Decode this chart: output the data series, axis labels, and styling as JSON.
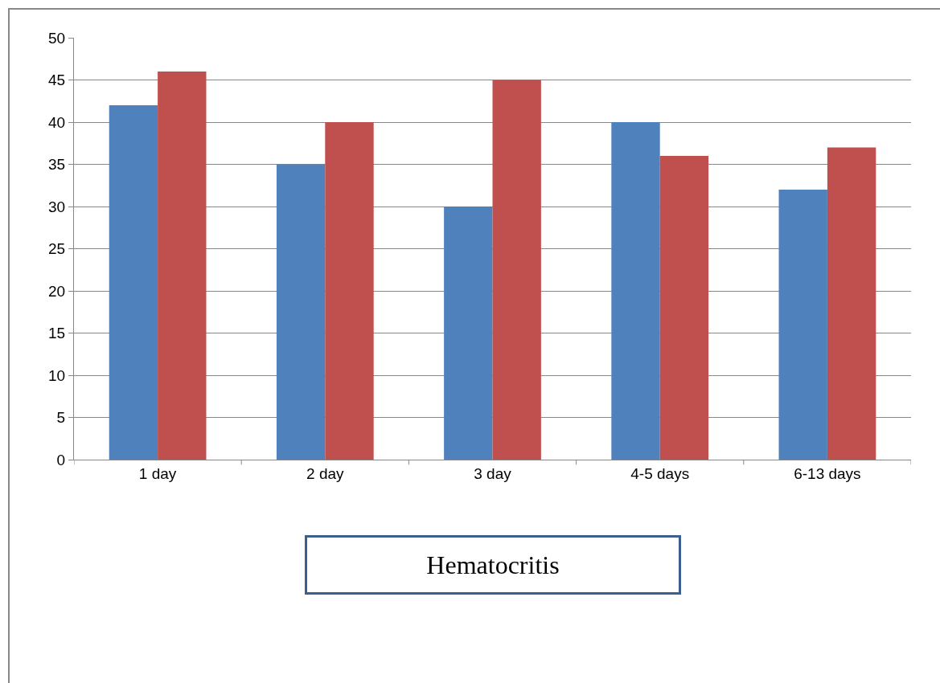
{
  "chart_data": {
    "type": "bar",
    "title": "Hematocritis",
    "categories": [
      "1 day",
      "2 day",
      "3 day",
      "4-5 days",
      "6-13 days"
    ],
    "series": [
      {
        "color": "#4f81bd",
        "values": [
          42,
          35,
          30,
          40,
          32
        ]
      },
      {
        "color": "#c0504d",
        "values": [
          46,
          40,
          45,
          36,
          37
        ]
      }
    ],
    "ylim": [
      0,
      50
    ],
    "yticks": [
      0,
      5,
      10,
      15,
      20,
      25,
      30,
      35,
      40,
      45,
      50
    ],
    "grid": "y"
  }
}
